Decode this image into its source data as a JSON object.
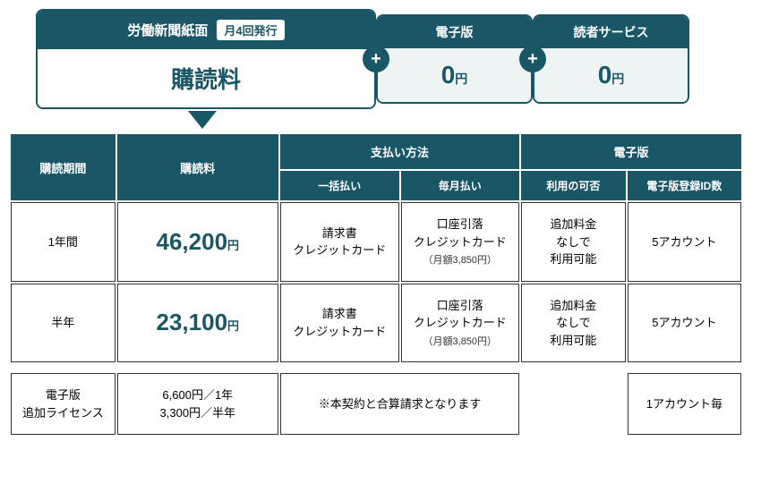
{
  "colors": {
    "primary": "#1a5766",
    "background": "#ffffff",
    "side_body_bg": "#eef4f4",
    "cell_border": "#333333"
  },
  "top": {
    "main": {
      "title": "労働新聞紙面",
      "badge": "月4回発行",
      "body": "購読料"
    },
    "digital": {
      "title": "電子版",
      "amount": "0",
      "unit": "円"
    },
    "reader": {
      "title": "読者サービス",
      "amount": "0",
      "unit": "円"
    }
  },
  "headers": {
    "period": "購読期間",
    "price": "購読料",
    "payment": "支払い方法",
    "payment_lump": "一括払い",
    "payment_monthly": "毎月払い",
    "digital": "電子版",
    "digital_avail": "利用の可否",
    "digital_ids": "電子版登録ID数"
  },
  "rows": [
    {
      "period": "1年間",
      "price": "46,200",
      "price_unit": "円",
      "lump": "請求書\nクレジットカード",
      "monthly": "口座引落\nクレジットカード",
      "monthly_note": "（月額3,850円）",
      "avail": "追加料金\nなしで\n利用可能",
      "ids": "5アカウント"
    },
    {
      "period": "半年",
      "price": "23,100",
      "price_unit": "円",
      "lump": "請求書\nクレジットカード",
      "monthly": "口座引落\nクレジットカード",
      "monthly_note": "（月額3,850円）",
      "avail": "追加料金\nなしで\n利用可能",
      "ids": "5アカウント"
    }
  ],
  "addon": {
    "label": "電子版\n追加ライセンス",
    "price": "6,600円／1年\n3,300円／半年",
    "note": "※本契約と合算請求となります",
    "ids": "1アカウント毎"
  }
}
